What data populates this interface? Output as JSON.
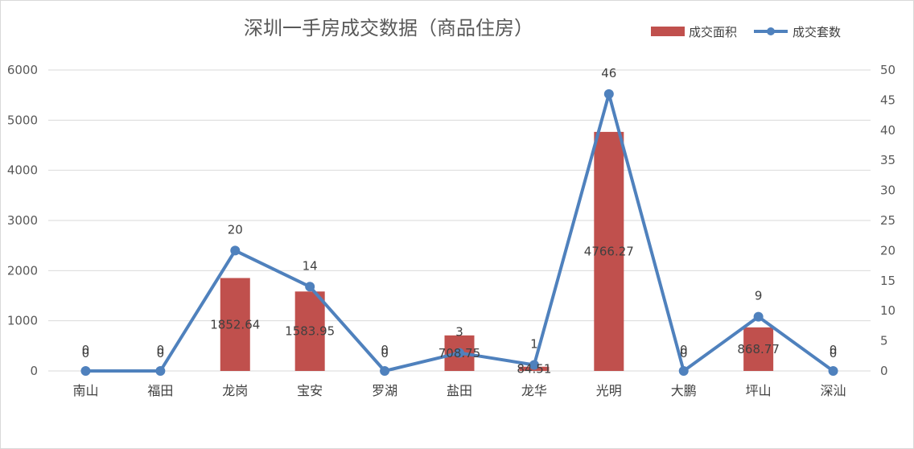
{
  "colors": {
    "bar": "#c0504d",
    "line": "#4f81bd",
    "grid": "#d9d9d9",
    "text": "#404040",
    "title": "#595959"
  },
  "chart_data": {
    "type": "bar",
    "title": "深圳一手房成交数据（商品住房）",
    "legend_position": "top-right",
    "grid": true,
    "categories": [
      "南山",
      "福田",
      "龙岗",
      "宝安",
      "罗湖",
      "盐田",
      "龙华",
      "光明",
      "大鹏",
      "坪山",
      "深汕"
    ],
    "series": [
      {
        "name": "成交面积",
        "kind": "bar",
        "axis": "left",
        "values": [
          0,
          0,
          1852.64,
          1583.95,
          0,
          708.75,
          84.51,
          4766.27,
          0,
          868.77,
          0
        ],
        "labels": [
          "0",
          "0",
          "1852.64",
          "1583.95",
          "0",
          "708.75",
          "84.51",
          "4766.27",
          "0",
          "868.77",
          "0"
        ]
      },
      {
        "name": "成交套数",
        "kind": "line",
        "axis": "right",
        "values": [
          0,
          0,
          20,
          14,
          0,
          3,
          1,
          46,
          0,
          9,
          0
        ],
        "labels": [
          "0",
          "0",
          "20",
          "14",
          "0",
          "3",
          "1",
          "46",
          "0",
          "9",
          "0"
        ]
      }
    ],
    "y_left": {
      "ylim": [
        0,
        6000
      ],
      "ticks": [
        "0",
        "1000",
        "2000",
        "3000",
        "4000",
        "5000",
        "6000"
      ]
    },
    "y_right": {
      "ylim": [
        0,
        50
      ],
      "ticks": [
        "0",
        "5",
        "10",
        "15",
        "20",
        "25",
        "30",
        "35",
        "40",
        "45",
        "50"
      ]
    }
  }
}
